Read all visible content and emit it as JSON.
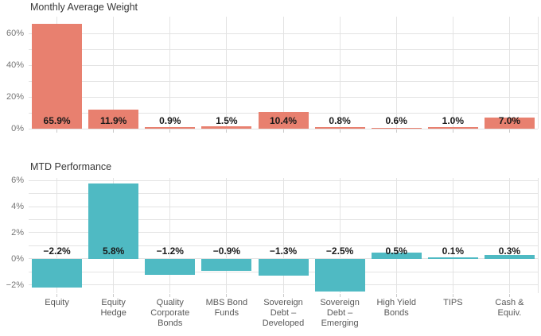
{
  "figure": {
    "background": "#ffffff"
  },
  "colors": {
    "weight_bar": "#e8806f",
    "performance_bar": "#4fbac3",
    "gridline": "#e3e3e3",
    "tick_mark": "#c9c9c9",
    "title_text": "#383838",
    "axis_text": "#757575",
    "category_text": "#595959",
    "value_label_text": "#1a1a1a"
  },
  "chart_data": [
    {
      "type": "bar",
      "title": "Monthly Average Weight",
      "bar_color": "#e8806f",
      "categories": [
        "Equity",
        "Equity Hedge",
        "Quality Corporate Bonds",
        "MBS Bond Funds",
        "Sovereign Debt – Developed",
        "Sovereign Debt – Emerging",
        "High Yield Bonds",
        "TIPS",
        "Cash & Equiv."
      ],
      "values": [
        65.9,
        11.9,
        0.9,
        1.5,
        10.4,
        0.8,
        0.6,
        1.0,
        7.0
      ],
      "value_labels": [
        "65.9%",
        "11.9%",
        "0.9%",
        "1.5%",
        "10.4%",
        "0.8%",
        "0.6%",
        "1.0%",
        "7.0%"
      ],
      "unit": "%",
      "ylim": [
        0,
        70.5
      ],
      "grid_values": [
        0,
        10,
        20,
        30,
        40,
        50,
        60
      ],
      "ytick_values": [
        0,
        20,
        40,
        60
      ],
      "ytick_labels": [
        "0%",
        "20%",
        "40%",
        "60%"
      ],
      "grid": true,
      "legend": "none"
    },
    {
      "type": "bar",
      "title": "MTD Performance",
      "bar_color": "#4fbac3",
      "categories": [
        "Equity",
        "Equity Hedge",
        "Quality Corporate Bonds",
        "MBS Bond Funds",
        "Sovereign Debt – Developed",
        "Sovereign Debt – Emerging",
        "High Yield Bonds",
        "TIPS",
        "Cash & Equiv."
      ],
      "values": [
        -2.2,
        5.8,
        -1.2,
        -0.9,
        -1.3,
        -2.5,
        0.5,
        0.1,
        0.3
      ],
      "value_labels": [
        "−2.2%",
        "5.8%",
        "−1.2%",
        "−0.9%",
        "−1.3%",
        "−2.5%",
        "0.5%",
        "0.1%",
        "0.3%"
      ],
      "unit": "%",
      "ylim": [
        -2.6,
        6.2
      ],
      "grid_values": [
        -2,
        -1,
        0,
        1,
        2,
        3,
        4,
        5,
        6
      ],
      "ytick_values": [
        -2,
        0,
        2,
        4,
        6
      ],
      "ytick_labels": [
        "−2%",
        "0%",
        "2%",
        "4%",
        "6%"
      ],
      "grid": true,
      "legend": "none"
    }
  ],
  "x_axis": {
    "tick_labels": [
      "Equity",
      "Equity\nHedge",
      "Quality\nCorporate\nBonds",
      "MBS Bond\nFunds",
      "Sovereign\nDebt –\nDeveloped",
      "Sovereign\nDebt –\nEmerging",
      "High Yield\nBonds",
      "TIPS",
      "Cash &\nEquiv."
    ]
  }
}
